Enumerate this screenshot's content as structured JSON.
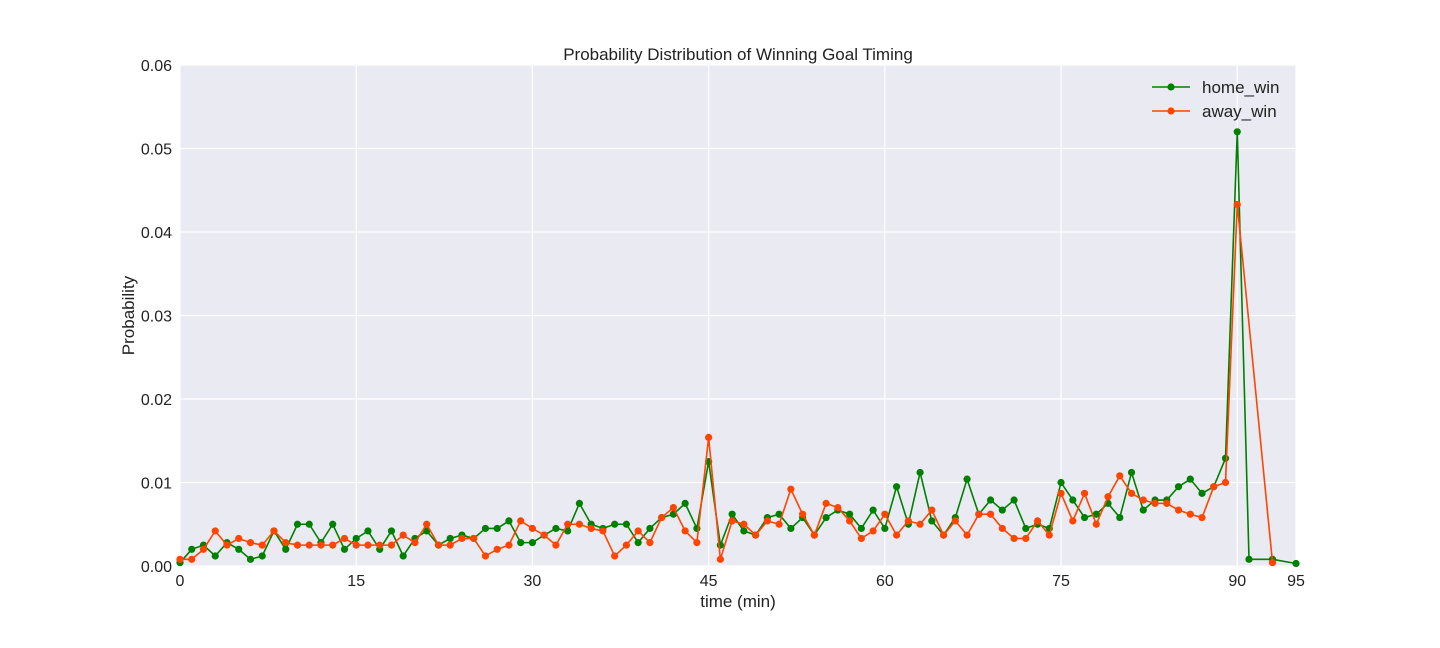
{
  "chart_data": {
    "type": "line",
    "title": "Probability Distribution of Winning Goal Timing",
    "xlabel": "time (min)",
    "ylabel": "Probability",
    "xlim": [
      0,
      95
    ],
    "ylim": [
      0,
      0.06
    ],
    "xticks": [
      0,
      15,
      30,
      45,
      60,
      75,
      90,
      95
    ],
    "xtick_labels": [
      "0",
      "15",
      "30",
      "45",
      "60",
      "75",
      "90",
      "95"
    ],
    "yticks": [
      0,
      0.01,
      0.02,
      0.03,
      0.04,
      0.05,
      0.06
    ],
    "ytick_labels": [
      "0.00",
      "0.01",
      "0.02",
      "0.03",
      "0.04",
      "0.05",
      "0.06"
    ],
    "grid": true,
    "background": "#eaeaf2",
    "legend_position": "top-right",
    "series": [
      {
        "name": "home_win",
        "color": "#008000",
        "x": [
          0,
          1,
          2,
          3,
          4,
          5,
          6,
          7,
          8,
          9,
          10,
          11,
          12,
          13,
          14,
          15,
          16,
          17,
          18,
          19,
          20,
          21,
          22,
          23,
          24,
          25,
          26,
          27,
          28,
          29,
          30,
          31,
          32,
          33,
          34,
          35,
          36,
          37,
          38,
          39,
          40,
          41,
          42,
          43,
          44,
          45,
          46,
          47,
          48,
          49,
          50,
          51,
          52,
          53,
          54,
          55,
          56,
          57,
          58,
          59,
          60,
          61,
          62,
          63,
          64,
          65,
          66,
          67,
          68,
          69,
          70,
          71,
          72,
          73,
          74,
          75,
          76,
          77,
          78,
          79,
          80,
          81,
          82,
          83,
          84,
          85,
          86,
          87,
          88,
          89,
          90,
          91,
          93,
          95
        ],
        "y": [
          0.0004,
          0.002,
          0.0025,
          0.0012,
          0.0028,
          0.002,
          0.0008,
          0.0012,
          0.0042,
          0.002,
          0.005,
          0.005,
          0.0028,
          0.005,
          0.002,
          0.0033,
          0.0042,
          0.002,
          0.0042,
          0.0012,
          0.0033,
          0.0042,
          0.0025,
          0.0033,
          0.0037,
          0.0033,
          0.0045,
          0.0045,
          0.0054,
          0.0028,
          0.0028,
          0.0037,
          0.0045,
          0.0042,
          0.0075,
          0.005,
          0.0045,
          0.005,
          0.005,
          0.0028,
          0.0045,
          0.0058,
          0.0062,
          0.0075,
          0.0045,
          0.0125,
          0.0025,
          0.0062,
          0.0042,
          0.0037,
          0.0058,
          0.0062,
          0.0045,
          0.0058,
          0.0037,
          0.0058,
          0.0067,
          0.0062,
          0.0045,
          0.0067,
          0.0045,
          0.0095,
          0.005,
          0.0112,
          0.0054,
          0.0037,
          0.0058,
          0.0104,
          0.0062,
          0.0079,
          0.0067,
          0.0079,
          0.0045,
          0.005,
          0.0045,
          0.01,
          0.0079,
          0.0058,
          0.0062,
          0.0075,
          0.0058,
          0.0112,
          0.0067,
          0.0079,
          0.0079,
          0.0095,
          0.0104,
          0.0087,
          0.0095,
          0.0129,
          0.052,
          0.0008,
          0.0008,
          0.0003
        ]
      },
      {
        "name": "away_win",
        "color": "#ff4500",
        "x": [
          0,
          1,
          2,
          3,
          4,
          5,
          6,
          7,
          8,
          9,
          10,
          11,
          12,
          13,
          14,
          15,
          16,
          17,
          18,
          19,
          20,
          21,
          22,
          23,
          24,
          25,
          26,
          27,
          28,
          29,
          30,
          31,
          32,
          33,
          34,
          35,
          36,
          37,
          38,
          39,
          40,
          41,
          42,
          43,
          44,
          45,
          46,
          47,
          48,
          49,
          50,
          51,
          52,
          53,
          54,
          55,
          56,
          57,
          58,
          59,
          60,
          61,
          62,
          63,
          64,
          65,
          66,
          67,
          68,
          69,
          70,
          71,
          72,
          73,
          74,
          75,
          76,
          77,
          78,
          79,
          80,
          81,
          82,
          83,
          84,
          85,
          86,
          87,
          88,
          89,
          90,
          93
        ],
        "y": [
          0.0008,
          0.0008,
          0.002,
          0.0042,
          0.0025,
          0.0033,
          0.0028,
          0.0025,
          0.0042,
          0.0028,
          0.0025,
          0.0025,
          0.0025,
          0.0025,
          0.0033,
          0.0025,
          0.0025,
          0.0025,
          0.0025,
          0.0037,
          0.0028,
          0.005,
          0.0025,
          0.0025,
          0.0033,
          0.0033,
          0.0012,
          0.002,
          0.0025,
          0.0054,
          0.0045,
          0.0037,
          0.0025,
          0.005,
          0.005,
          0.0045,
          0.0042,
          0.0012,
          0.0025,
          0.0042,
          0.0028,
          0.0058,
          0.007,
          0.0042,
          0.0028,
          0.0154,
          0.0008,
          0.0054,
          0.005,
          0.0037,
          0.0054,
          0.005,
          0.0092,
          0.0062,
          0.0037,
          0.0075,
          0.007,
          0.0054,
          0.0033,
          0.0042,
          0.0062,
          0.0037,
          0.0054,
          0.005,
          0.0067,
          0.0037,
          0.0054,
          0.0037,
          0.0062,
          0.0062,
          0.0045,
          0.0033,
          0.0033,
          0.0054,
          0.0037,
          0.0087,
          0.0054,
          0.0087,
          0.005,
          0.0083,
          0.0108,
          0.0087,
          0.0079,
          0.0075,
          0.0075,
          0.0067,
          0.0062,
          0.0058,
          0.0095,
          0.01,
          0.0433,
          0.0004
        ]
      }
    ]
  }
}
